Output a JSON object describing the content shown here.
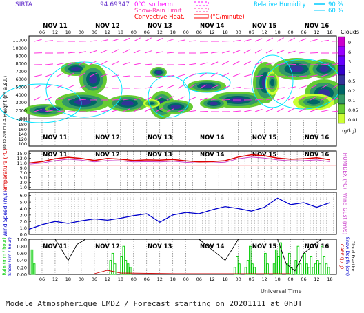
{
  "header": {
    "station": "SIRTA",
    "station_code": "94.69347",
    "legend_left": [
      {
        "label": "0°C isotherm",
        "color": "#ff00ff"
      },
      {
        "label": "Snow-Rain Limit",
        "color": "#ff33aa"
      },
      {
        "label": "Convective Heat.",
        "color": "#ff0000",
        "unit": "(°C/minute)"
      }
    ],
    "legend_right": {
      "label": "Relative Humidity",
      "values": [
        "90 %",
        "60 %"
      ],
      "color": "#00ccff"
    }
  },
  "footer": {
    "title": "Modele Atmospherique LMDZ / Forecast starting on 20201111 at 0hUT",
    "xlabel": "Universal Time"
  },
  "colors": {
    "temp": "#dd0000",
    "humidex": "#cc44cc",
    "wind": "#0000cc",
    "rain": "#00cc00",
    "cape": "#cc0000",
    "snowdepth": "#0000cc",
    "cloud": "#000000",
    "cyan": "#00e5ff",
    "wind_vec": "#ff33dd"
  },
  "chart_data": [
    {
      "type": "heatmap",
      "name": "clouds",
      "ylabel": "Height (m a.s.l.)",
      "ylabel2": "Up to 200 m a.g.l.",
      "day_labels": [
        "NOV 11",
        "NOV 12",
        "NOV 13",
        "NOV 14",
        "NOV 15",
        "NOV 16"
      ],
      "hour_labels": [
        "06",
        "12",
        "18",
        "00",
        "06",
        "12",
        "18",
        "00",
        "06",
        "12",
        "18",
        "00",
        "06",
        "12",
        "18",
        "00",
        "06",
        "12",
        "18",
        "00",
        "06",
        "12",
        "18"
      ],
      "y_ticks_upper": [
        "11000",
        "10000",
        "9000",
        "8000",
        "7000",
        "6000",
        "5000",
        "4000",
        "3000",
        "2000",
        "1000"
      ],
      "y_ticks_lower": [
        "200",
        "180",
        "160",
        "140",
        "120",
        "100"
      ],
      "colorbar_title": "Clouds",
      "colorbar_unit": "(g/kg)",
      "colorbar_labels": [
        "9",
        "6",
        "3",
        "1",
        "0.5",
        "0.2",
        "0.1",
        "0.05",
        "0.01"
      ],
      "colorbar_colors": [
        "#cc00cc",
        "#9900ff",
        "#6600ff",
        "#3300cc",
        "#333399",
        "#006666",
        "#339966",
        "#66cc33",
        "#ccff33"
      ]
    },
    {
      "type": "line",
      "name": "temperature",
      "ylabel": "Temperature (°C)",
      "ylabel2": "HUMIDEX (°C)",
      "day_labels": [
        "NOV 11",
        "NOV 12",
        "NOV 13",
        "NOV 14",
        "NOV 15",
        "NOV 16"
      ],
      "y_ticks": [
        "15.0",
        "13.0",
        "11.0",
        "9.0",
        "7.0",
        "5.0",
        "3.0",
        "1.0"
      ],
      "ylim": [
        0,
        16
      ],
      "x_hours": [
        0,
        6,
        12,
        18,
        24,
        30,
        36,
        42,
        48,
        54,
        60,
        66,
        72,
        78,
        84,
        90,
        96,
        102,
        108,
        114,
        120,
        126,
        132,
        138
      ],
      "series": [
        {
          "name": "Temperature",
          "values": [
            11.0,
            11.6,
            12.8,
            13.4,
            12.9,
            12.1,
            12.9,
            12.6,
            12.1,
            12.3,
            12.2,
            12.5,
            11.9,
            11.5,
            11.6,
            12.0,
            13.5,
            14.4,
            14.0,
            13.1,
            12.6,
            12.8,
            13.2,
            12.4
          ]
        },
        {
          "name": "HUMIDEX",
          "values": [
            10.5,
            11.0,
            12.0,
            12.6,
            12.2,
            11.5,
            12.1,
            11.9,
            11.5,
            11.6,
            11.5,
            11.8,
            11.3,
            11.0,
            11.1,
            11.4,
            12.8,
            13.5,
            13.1,
            12.3,
            11.9,
            12.0,
            12.3,
            11.6
          ]
        }
      ]
    },
    {
      "type": "line",
      "name": "wind",
      "ylabel": "Wind Speed (m/s)",
      "ylabel2": "Wind Gust (m/s)",
      "day_labels": [
        "NOV 11",
        "NOV 12",
        "NOV 13",
        "NOV 14",
        "NOV 15",
        "NOV 16"
      ],
      "y_ticks": [
        "6.0",
        "5.0",
        "4.0",
        "3.0",
        "2.0",
        "1.0",
        "0.0"
      ],
      "ylim": [
        0,
        6.5
      ],
      "x_hours": [
        0,
        6,
        12,
        18,
        24,
        30,
        36,
        42,
        48,
        54,
        60,
        66,
        72,
        78,
        84,
        90,
        96,
        102,
        108,
        114,
        120,
        126,
        132,
        138
      ],
      "series": [
        {
          "name": "Wind Speed",
          "values": [
            0.8,
            1.5,
            2.0,
            1.7,
            2.1,
            2.4,
            2.2,
            2.5,
            2.9,
            3.2,
            1.9,
            3.0,
            3.4,
            3.2,
            3.8,
            4.3,
            4.0,
            3.6,
            4.2,
            5.6,
            4.6,
            4.9,
            4.2,
            4.9
          ]
        }
      ]
    },
    {
      "type": "bar",
      "name": "precip",
      "ylabel": "Rain (mm / hour)",
      "ylabel_b": "Snow (cm / hour)",
      "ylabel2": "CAPE (J / g)",
      "ylabel2b": "Snow Depth (cm)",
      "ylabel2c": "Cloud Fraction",
      "day_labels": [
        "NOV 11",
        "NOV 12",
        "NOV 13",
        "NOV 14",
        "NOV 15",
        "NOV 16"
      ],
      "hour_labels": [
        "06",
        "12",
        "18",
        "00",
        "06",
        "12",
        "18",
        "00",
        "06",
        "12",
        "18",
        "00",
        "06",
        "12",
        "18",
        "00",
        "06",
        "12",
        "18",
        "00",
        "06",
        "12",
        "18"
      ],
      "y_ticks": [
        "1.00",
        "0.80",
        "0.60",
        "0.40",
        "0.20",
        "0.00"
      ],
      "ylim": [
        0,
        1.0
      ],
      "rain_hours": [
        1,
        2,
        37,
        38,
        39,
        42,
        43,
        44,
        45,
        46,
        94,
        95,
        96,
        99,
        100,
        101,
        102,
        103,
        108,
        109,
        112,
        113,
        114,
        115,
        118,
        119,
        120,
        122,
        123,
        124,
        126,
        127,
        128,
        129,
        130,
        131,
        132,
        133,
        134,
        135,
        136,
        137
      ],
      "rain_values": [
        0.7,
        0.3,
        0.4,
        0.6,
        0.3,
        0.5,
        0.8,
        0.4,
        0.3,
        0.2,
        0.2,
        0.5,
        0.3,
        0.2,
        0.4,
        0.8,
        0.3,
        0.2,
        0.6,
        0.3,
        0.3,
        0.7,
        0.5,
        0.9,
        0.3,
        0.6,
        0.2,
        0.4,
        0.8,
        0.3,
        0.6,
        0.3,
        0.2,
        0.5,
        0.2,
        0.3,
        0.4,
        0.3,
        0.8,
        0.5,
        0.3,
        0.2
      ],
      "cloud_x": [
        0,
        6,
        12,
        18,
        22,
        26,
        30,
        36,
        42,
        48,
        54,
        60,
        66,
        72,
        78,
        84,
        90,
        96,
        102,
        108,
        114,
        118,
        122,
        126,
        130,
        134,
        138
      ],
      "cloud_values": [
        1,
        1,
        1,
        0.4,
        0.85,
        1,
        1,
        1,
        1,
        1,
        1,
        1,
        1,
        1,
        1,
        0.7,
        0.4,
        1,
        1,
        1,
        1,
        0.3,
        0.1,
        0.6,
        0.8,
        1,
        1
      ]
    }
  ]
}
